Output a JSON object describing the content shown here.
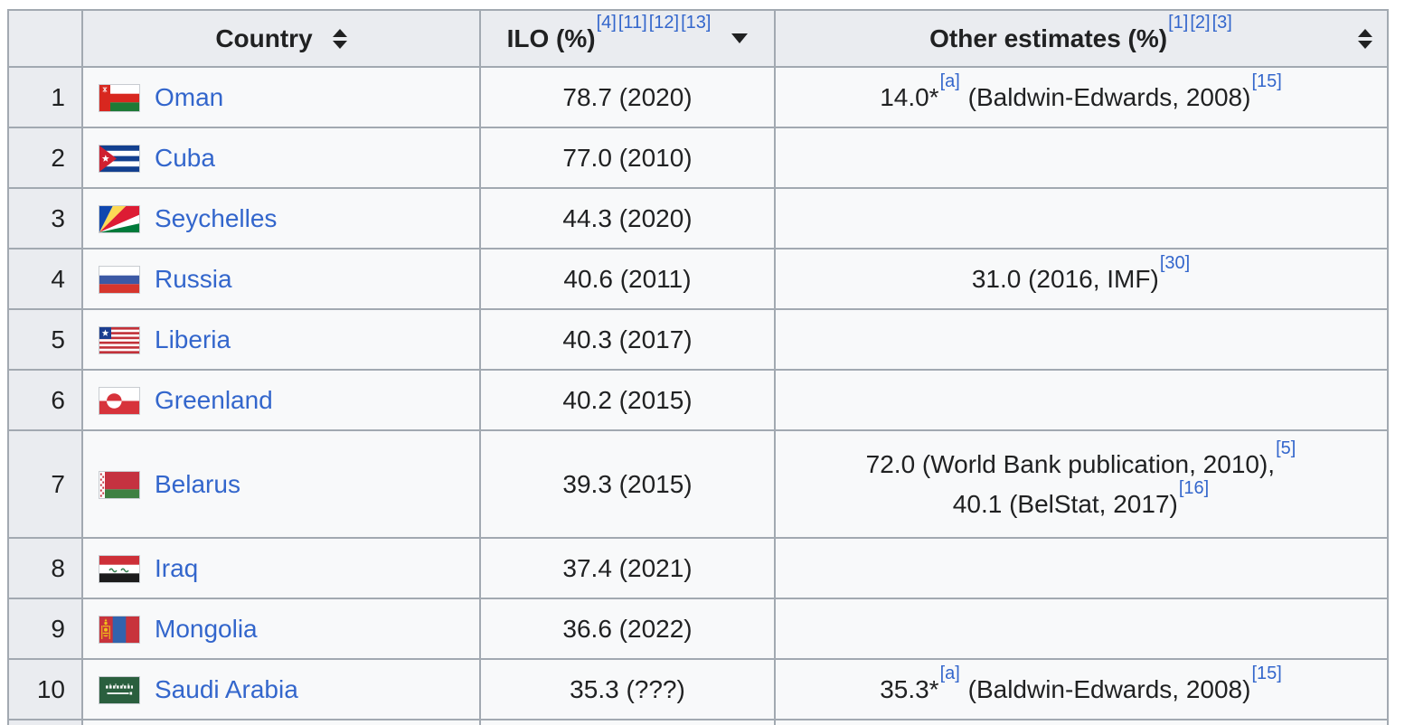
{
  "colors": {
    "link_blue": "#3366cc",
    "header_background": "#eaecf0",
    "cell_background": "#f8f9fa",
    "border": "#a2a9b1",
    "text": "#202122"
  },
  "table": {
    "headers": {
      "rank": {
        "label": ""
      },
      "country": {
        "label": "Country",
        "sort_icon": "sort-both"
      },
      "ilo": {
        "label": "ILO (%)",
        "refs": [
          "[4]",
          "[11]",
          "[12]",
          "[13]"
        ],
        "sort_icon": "sort-descending"
      },
      "other": {
        "label": "Other estimates (%)",
        "refs": [
          "[1]",
          "[2]",
          "[3]"
        ],
        "sort_icon": "sort-both"
      }
    },
    "rows": [
      {
        "rank": "1",
        "country": "Oman",
        "flag": "oman",
        "ilo": "78.7 (2020)",
        "other_lines": [
          [
            {
              "text": "14.0*"
            },
            {
              "ref": "[a]"
            },
            {
              "text": " (Baldwin-Edwards, 2008)"
            },
            {
              "ref": "[15]"
            }
          ]
        ]
      },
      {
        "rank": "2",
        "country": "Cuba",
        "flag": "cuba",
        "ilo": "77.0 (2010)",
        "other_lines": []
      },
      {
        "rank": "3",
        "country": "Seychelles",
        "flag": "seychelles",
        "ilo": "44.3 (2020)",
        "other_lines": []
      },
      {
        "rank": "4",
        "country": "Russia",
        "flag": "russia",
        "ilo": "40.6 (2011)",
        "other_lines": [
          [
            {
              "text": "31.0 (2016, IMF)"
            },
            {
              "ref": "[30]"
            }
          ]
        ]
      },
      {
        "rank": "5",
        "country": "Liberia",
        "flag": "liberia",
        "ilo": "40.3 (2017)",
        "other_lines": []
      },
      {
        "rank": "6",
        "country": "Greenland",
        "flag": "greenland",
        "ilo": "40.2 (2015)",
        "other_lines": []
      },
      {
        "rank": "7",
        "country": "Belarus",
        "flag": "belarus",
        "ilo": "39.3 (2015)",
        "other_lines": [
          [
            {
              "text": "72.0 (World Bank publication, 2010),"
            },
            {
              "ref": "[5]"
            }
          ],
          [
            {
              "text": "40.1 (BelStat, 2017)"
            },
            {
              "ref": "[16]"
            }
          ]
        ]
      },
      {
        "rank": "8",
        "country": "Iraq",
        "flag": "iraq",
        "ilo": "37.4 (2021)",
        "other_lines": []
      },
      {
        "rank": "9",
        "country": "Mongolia",
        "flag": "mongolia",
        "ilo": "36.6 (2022)",
        "other_lines": []
      },
      {
        "rank": "10",
        "country": "Saudi Arabia",
        "flag": "saudi-arabia",
        "ilo": "35.3 (???)",
        "other_lines": [
          [
            {
              "text": "35.3*"
            },
            {
              "ref": "[a]"
            },
            {
              "text": " (Baldwin-Edwards, 2008)"
            },
            {
              "ref": "[15]"
            }
          ]
        ]
      },
      {
        "rank": "",
        "country": null,
        "flag": null,
        "ilo": "",
        "other_lines": [],
        "partial": true
      }
    ]
  }
}
